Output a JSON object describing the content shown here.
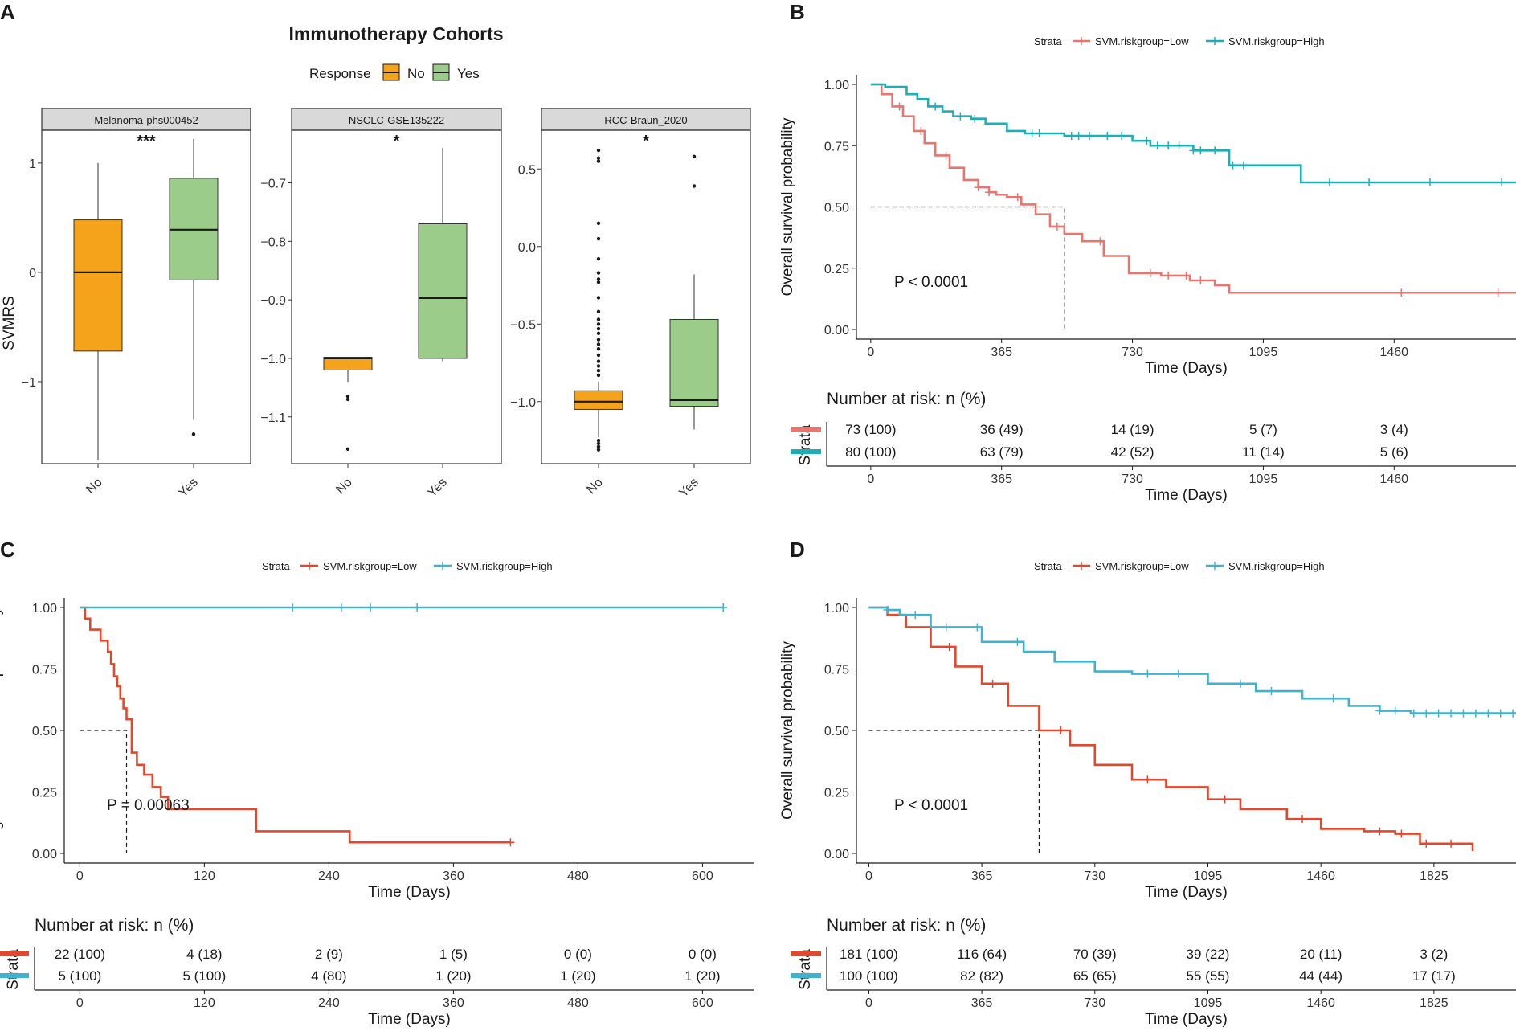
{
  "chart_data": [
    {
      "panel": "A",
      "type": "box",
      "title": "Immunotherapy Cohorts",
      "legend": {
        "title": "Response",
        "entries": [
          {
            "label": "No",
            "color": "#F5A31A"
          },
          {
            "label": "Yes",
            "color": "#9CCC8A"
          }
        ]
      },
      "ylabel": "SVMRS",
      "facets": [
        {
          "label": "Melanoma-phs000452",
          "sig": "***",
          "ylim": [
            -1.75,
            1.3
          ],
          "yticks": [
            1,
            0,
            -1
          ],
          "tick_labels": [
            "1",
            "0",
            "−1"
          ],
          "boxes": [
            {
              "category": "No",
              "q1": -0.72,
              "median": 0.0,
              "q3": 0.48,
              "whisker_low": -1.72,
              "whisker_high": 1.0,
              "outliers": []
            },
            {
              "category": "Yes",
              "q1": -0.07,
              "median": 0.39,
              "q3": 0.86,
              "whisker_low": -1.35,
              "whisker_high": 1.22,
              "outliers": [
                -1.48
              ]
            }
          ]
        },
        {
          "label": "NSCLC-GSE135222",
          "sig": "*",
          "ylim": [
            -1.18,
            -0.61
          ],
          "yticks": [
            -0.7,
            -0.8,
            -0.9,
            -1.0,
            -1.1
          ],
          "tick_labels": [
            "−0.7",
            "−0.8",
            "−0.9",
            "−1.0",
            "−1.1"
          ],
          "boxes": [
            {
              "category": "No",
              "q1": -1.02,
              "median": -1.0,
              "q3": -0.998,
              "whisker_low": -1.04,
              "whisker_high": -0.998,
              "outliers": [
                -1.065,
                -1.07,
                -1.155
              ]
            },
            {
              "category": "Yes",
              "q1": -1.0,
              "median": -0.897,
              "q3": -0.77,
              "whisker_low": -1.005,
              "whisker_high": -0.64,
              "outliers": []
            }
          ]
        },
        {
          "label": "RCC-Braun_2020",
          "sig": "*",
          "ylim": [
            -1.4,
            0.75
          ],
          "yticks": [
            0.5,
            0.0,
            -0.5,
            -1.0
          ],
          "tick_labels": [
            "0.5",
            "0.0",
            "−0.5",
            "−1.0"
          ],
          "boxes": [
            {
              "category": "No",
              "q1": -1.05,
              "median": -1.0,
              "q3": -0.93,
              "whisker_low": -1.23,
              "whisker_high": -0.87,
              "outliers": [
                0.62,
                0.57,
                0.55,
                0.15,
                0.05,
                -0.08,
                -0.17,
                -0.21,
                -0.23,
                -0.33,
                -0.42,
                -0.47,
                -0.5,
                -0.53,
                -0.56,
                -0.6,
                -0.63,
                -0.66,
                -0.7,
                -0.74,
                -0.77,
                -0.8,
                -0.83,
                -1.25,
                -1.27,
                -1.29,
                -1.31
              ]
            },
            {
              "category": "Yes",
              "q1": -1.03,
              "median": -0.99,
              "q3": -0.47,
              "whisker_low": -1.18,
              "whisker_high": -0.18,
              "outliers": [
                0.58,
                0.39
              ]
            }
          ]
        }
      ]
    },
    {
      "panel": "B",
      "type": "line",
      "subtype": "kaplan-meier",
      "legend_title": "Strata",
      "xlabel": "Time (Days)",
      "ylabel": "Overall survival probability",
      "xlim": [
        -40,
        1800
      ],
      "ylim": [
        0,
        1
      ],
      "xticks": [
        0,
        365,
        730,
        1095,
        1460
      ],
      "yticks": [
        0,
        0.25,
        0.5,
        0.75,
        1.0
      ],
      "ytick_labels": [
        "0.00",
        "0.25",
        "0.50",
        "0.75",
        "1.00"
      ],
      "pval": "P < 0.0001",
      "median_line": {
        "x": 540,
        "y": 0.5
      },
      "series": [
        {
          "name": "SVM.riskgroup=Low",
          "color": "#E8766F",
          "x": [
            0,
            30,
            60,
            90,
            120,
            150,
            180,
            220,
            260,
            300,
            330,
            350,
            380,
            420,
            460,
            500,
            540,
            590,
            650,
            720,
            810,
            890,
            960,
            1000,
            1800
          ],
          "y": [
            1.0,
            0.96,
            0.91,
            0.87,
            0.81,
            0.76,
            0.71,
            0.66,
            0.61,
            0.58,
            0.56,
            0.55,
            0.54,
            0.51,
            0.47,
            0.42,
            0.39,
            0.36,
            0.3,
            0.23,
            0.22,
            0.2,
            0.18,
            0.15,
            0.15
          ],
          "censor_x": [
            80,
            140,
            210,
            300,
            330,
            410,
            520,
            640,
            780,
            830,
            880,
            920,
            1480,
            1750
          ]
        },
        {
          "name": "SVM.riskgroup=High",
          "color": "#1DAFB5",
          "x": [
            0,
            40,
            100,
            130,
            160,
            200,
            230,
            280,
            320,
            380,
            430,
            540,
            730,
            780,
            900,
            1000,
            1200,
            1800
          ],
          "y": [
            1.0,
            0.99,
            0.96,
            0.94,
            0.91,
            0.89,
            0.87,
            0.86,
            0.84,
            0.81,
            0.8,
            0.79,
            0.77,
            0.75,
            0.73,
            0.67,
            0.6,
            0.6
          ],
          "censor_x": [
            180,
            250,
            290,
            450,
            470,
            560,
            580,
            610,
            660,
            700,
            770,
            800,
            830,
            860,
            900,
            920,
            960,
            1010,
            1040,
            1280,
            1390,
            1560,
            1760
          ]
        }
      ],
      "risk_table": {
        "title": "Number at risk: n (%)",
        "ylabel": "Strata",
        "xlabel": "Time (Days)",
        "times": [
          0,
          365,
          730,
          1095,
          1460
        ],
        "rows": [
          {
            "color": "#E8766F",
            "values": [
              "73 (100)",
              "36 (49)",
              "14 (19)",
              "5 (7)",
              "3 (4)"
            ]
          },
          {
            "color": "#1DAFB5",
            "values": [
              "80 (100)",
              "63 (79)",
              "42 (52)",
              "11 (14)",
              "5 (6)"
            ]
          }
        ]
      }
    },
    {
      "panel": "C",
      "type": "line",
      "subtype": "kaplan-meier",
      "legend_title": "Strata",
      "xlabel": "Time (Days)",
      "ylabel": "Progression−free survival probability",
      "xlim": [
        -15,
        650
      ],
      "ylim": [
        0,
        1
      ],
      "xticks": [
        0,
        120,
        240,
        360,
        480,
        600
      ],
      "yticks": [
        0,
        0.25,
        0.5,
        0.75,
        1.0
      ],
      "ytick_labels": [
        "0.00",
        "0.25",
        "0.50",
        "0.75",
        "1.00"
      ],
      "pval": "P = 0.00063",
      "median_line": {
        "x": 45,
        "y": 0.5
      },
      "series": [
        {
          "name": "SVM.riskgroup=Low",
          "color": "#E2482D",
          "x": [
            0,
            5,
            10,
            20,
            27,
            30,
            33,
            36,
            39,
            42,
            45,
            50,
            55,
            62,
            70,
            78,
            85,
            100,
            165,
            170,
            260,
            415
          ],
          "y": [
            1.0,
            0.955,
            0.91,
            0.865,
            0.82,
            0.77,
            0.72,
            0.68,
            0.63,
            0.59,
            0.545,
            0.41,
            0.36,
            0.32,
            0.27,
            0.23,
            0.18,
            0.18,
            0.18,
            0.09,
            0.045,
            0.045
          ],
          "censor_x": [
            415
          ]
        },
        {
          "name": "SVM.riskgroup=High",
          "color": "#40B2CE",
          "x": [
            0,
            620
          ],
          "y": [
            1.0,
            1.0
          ],
          "censor_x": [
            205,
            252,
            280,
            325,
            620
          ]
        }
      ],
      "risk_table": {
        "title": "Number at risk: n (%)",
        "ylabel": "Strata",
        "xlabel": "Time (Days)",
        "times": [
          0,
          120,
          240,
          360,
          480,
          600
        ],
        "rows": [
          {
            "color": "#E2482D",
            "values": [
              "22 (100)",
              "4 (18)",
              "2 (9)",
              "1 (5)",
              "0 (0)",
              "0 (0)"
            ]
          },
          {
            "color": "#40B2CE",
            "values": [
              "5 (100)",
              "5 (100)",
              "4 (80)",
              "1 (20)",
              "1 (20)",
              "1 (20)"
            ]
          }
        ]
      }
    },
    {
      "panel": "D",
      "type": "line",
      "subtype": "kaplan-meier",
      "legend_title": "Strata",
      "xlabel": "Time (Days)",
      "ylabel": "Overall survival probability",
      "xlim": [
        -40,
        2090
      ],
      "ylim": [
        0,
        1
      ],
      "xticks": [
        0,
        365,
        730,
        1095,
        1460,
        1825
      ],
      "yticks": [
        0,
        0.25,
        0.5,
        0.75,
        1.0
      ],
      "ytick_labels": [
        "0.00",
        "0.25",
        "0.50",
        "0.75",
        "1.00"
      ],
      "pval": "P < 0.0001",
      "median_line": {
        "x": 550,
        "y": 0.5
      },
      "series": [
        {
          "name": "SVM.riskgroup=Low",
          "color": "#E2482D",
          "x": [
            0,
            60,
            120,
            200,
            280,
            365,
            450,
            550,
            650,
            730,
            850,
            960,
            1095,
            1200,
            1350,
            1460,
            1600,
            1700,
            1780,
            1900,
            1950
          ],
          "y": [
            1.0,
            0.97,
            0.92,
            0.84,
            0.76,
            0.69,
            0.6,
            0.5,
            0.44,
            0.36,
            0.3,
            0.27,
            0.22,
            0.18,
            0.14,
            0.1,
            0.09,
            0.08,
            0.04,
            0.04,
            0.01
          ],
          "censor_x": [
            260,
            400,
            620,
            900,
            1150,
            1400,
            1650,
            1720,
            1800,
            1880
          ]
        },
        {
          "name": "SVM.riskgroup=High",
          "color": "#40B2CE",
          "x": [
            0,
            60,
            100,
            200,
            365,
            500,
            600,
            730,
            850,
            1095,
            1250,
            1400,
            1550,
            1650,
            1750,
            2090
          ],
          "y": [
            1.0,
            0.99,
            0.97,
            0.92,
            0.86,
            0.82,
            0.78,
            0.74,
            0.73,
            0.69,
            0.66,
            0.63,
            0.6,
            0.58,
            0.57,
            0.57
          ],
          "censor_x": [
            60,
            150,
            250,
            350,
            480,
            900,
            1000,
            1200,
            1300,
            1500,
            1650,
            1700,
            1760,
            1800,
            1840,
            1880,
            1920,
            1960,
            2000,
            2040,
            2080
          ]
        }
      ],
      "risk_table": {
        "title": "Number at risk: n (%)",
        "ylabel": "Strata",
        "xlabel": "Time (Days)",
        "times": [
          0,
          365,
          730,
          1095,
          1460,
          1825
        ],
        "rows": [
          {
            "color": "#E2482D",
            "values": [
              "181 (100)",
              "116 (64)",
              "70 (39)",
              "39 (22)",
              "20 (11)",
              "3 (2)"
            ]
          },
          {
            "color": "#40B2CE",
            "values": [
              "100 (100)",
              "82 (82)",
              "65 (65)",
              "55 (55)",
              "44 (44)",
              "17 (17)"
            ]
          }
        ]
      }
    }
  ]
}
